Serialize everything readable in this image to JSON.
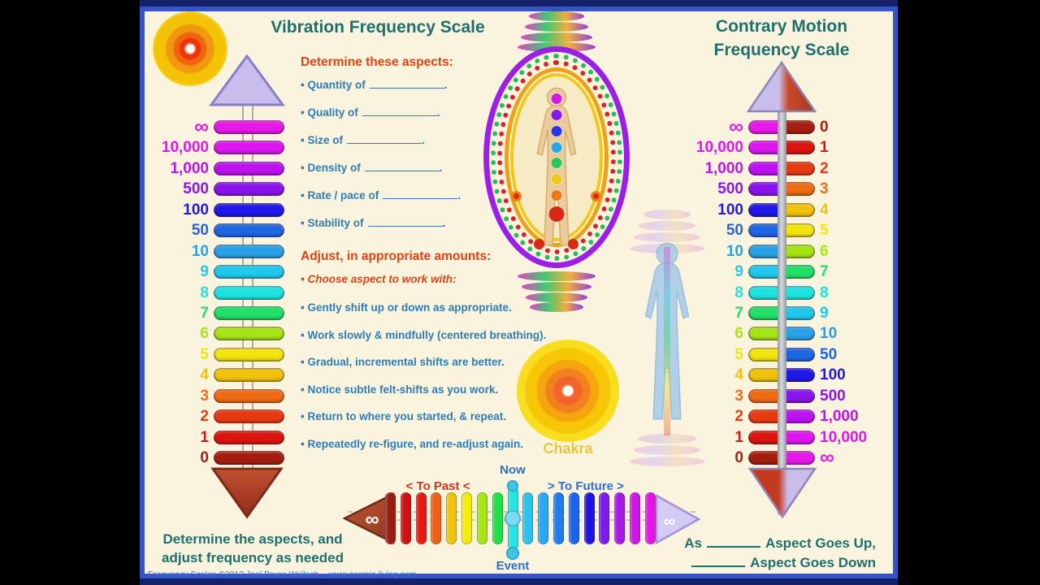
{
  "poster": {
    "left_title": "Vibration Frequency Scale",
    "right_title_line1": "Contrary Motion",
    "right_title_line2": "Frequency Scale",
    "footer": "Frequency Scales ©2012 Joel Bruce Wallach ~ www.cosmic-living.com",
    "chakra_label": "Chakra",
    "infinity_symbol": "∞"
  },
  "aspects": {
    "header": "Determine these aspects:",
    "items": [
      "Quantity of",
      "Quality of",
      "Size of",
      "Density of",
      "Rate / pace of",
      "Stability of"
    ]
  },
  "adjust": {
    "header": "Adjust, in appropriate amounts:",
    "lead_item": "Choose aspect to work with:",
    "items": [
      "Gently shift up or down as appropriate.",
      "Work slowly & mindfully (centered breathing).",
      "Gradual, incremental shifts are better.",
      "Notice subtle felt-shifts as you work.",
      "Return to where you started, & repeat.",
      "Repeatedly re-figure, and re-adjust again."
    ]
  },
  "left_scale": {
    "rows": [
      {
        "label": "∞",
        "color": "#E818E8"
      },
      {
        "label": "10,000",
        "color": "#DE16F0"
      },
      {
        "label": "1,000",
        "color": "#BE12F2"
      },
      {
        "label": "500",
        "color": "#8A14EE"
      },
      {
        "label": "100",
        "color": "#2018E8"
      },
      {
        "label": "50",
        "color": "#1E66E2"
      },
      {
        "label": "10",
        "color": "#28A0EA"
      },
      {
        "label": "9",
        "color": "#20C8EE"
      },
      {
        "label": "8",
        "color": "#1EE2E0"
      },
      {
        "label": "7",
        "color": "#20E068"
      },
      {
        "label": "6",
        "color": "#A6E414"
      },
      {
        "label": "5",
        "color": "#F2E40C"
      },
      {
        "label": "4",
        "color": "#F0C20C"
      },
      {
        "label": "3",
        "color": "#F06C14"
      },
      {
        "label": "2",
        "color": "#E83A10"
      },
      {
        "label": "1",
        "color": "#DE1410"
      },
      {
        "label": "0",
        "color": "#A61E10"
      }
    ]
  },
  "contrary_scale": {
    "rows": [
      {
        "left_label": "∞",
        "left_color": "#E818E8",
        "right_label": "0",
        "right_color": "#A61E10"
      },
      {
        "left_label": "10,000",
        "left_color": "#DE16F0",
        "right_label": "1",
        "right_color": "#DE1410"
      },
      {
        "left_label": "1,000",
        "left_color": "#BE12F2",
        "right_label": "2",
        "right_color": "#E83A10"
      },
      {
        "left_label": "500",
        "left_color": "#8A14EE",
        "right_label": "3",
        "right_color": "#F06C14"
      },
      {
        "left_label": "100",
        "left_color": "#2018E8",
        "right_label": "4",
        "right_color": "#F0C20C"
      },
      {
        "left_label": "50",
        "left_color": "#1E66E2",
        "right_label": "5",
        "right_color": "#F2E40C"
      },
      {
        "left_label": "10",
        "left_color": "#28A0EA",
        "right_label": "6",
        "right_color": "#A6E414"
      },
      {
        "left_label": "9",
        "left_color": "#20C8EE",
        "right_label": "7",
        "right_color": "#20E068"
      },
      {
        "left_label": "8",
        "left_color": "#1EE2E0",
        "right_label": "8",
        "right_color": "#1EE2E0"
      },
      {
        "left_label": "7",
        "left_color": "#20E068",
        "right_label": "9",
        "right_color": "#20C8EE"
      },
      {
        "left_label": "6",
        "left_color": "#A6E414",
        "right_label": "10",
        "right_color": "#28A0EA"
      },
      {
        "left_label": "5",
        "left_color": "#F2E40C",
        "right_label": "50",
        "right_color": "#1E66E2"
      },
      {
        "left_label": "4",
        "left_color": "#F0C20C",
        "right_label": "100",
        "right_color": "#2018E8"
      },
      {
        "left_label": "3",
        "left_color": "#F06C14",
        "right_label": "500",
        "right_color": "#8A14EE"
      },
      {
        "left_label": "2",
        "left_color": "#E83A10",
        "right_label": "1,000",
        "right_color": "#BE12F2"
      },
      {
        "left_label": "1",
        "left_color": "#DE1410",
        "right_label": "10,000",
        "right_color": "#DE16F0"
      },
      {
        "left_label": "0",
        "left_color": "#A61E10",
        "right_label": "∞",
        "right_color": "#E818E8"
      }
    ]
  },
  "timeline": {
    "past_label": "< To Past <",
    "now_label": "Now",
    "future_label": "> To Future >",
    "event_label": "Event",
    "now_bar_index": 8,
    "bar_colors": [
      "#9B1D10",
      "#D01014",
      "#E61A0E",
      "#F06014",
      "#F0C40C",
      "#F4EC0C",
      "#A8E414",
      "#20E048",
      "#24E4E4",
      "#2CC2F0",
      "#28A8F0",
      "#1C7CF0",
      "#1864EC",
      "#1C14E4",
      "#7C1AEC",
      "#A818E8",
      "#CC16E4",
      "#E414E4"
    ]
  },
  "bottom_left_note": {
    "line1": "Determine the aspects, and",
    "line2": "adjust frequency as needed"
  },
  "contrary_note": {
    "as_prefix": "As",
    "line1_text": "Aspect Goes Up,",
    "line2_text": "Aspect Goes Down"
  },
  "aura": {
    "ring_colors": [
      "#9B1FE8",
      "#22C05A",
      "#E02028",
      "#F0A010",
      "#F0C818"
    ],
    "chakra_dot_colors": [
      "#D818E8",
      "#8818E8",
      "#2838E8",
      "#28A8EC",
      "#28C858",
      "#F0C818",
      "#F07818",
      "#D82818"
    ]
  }
}
